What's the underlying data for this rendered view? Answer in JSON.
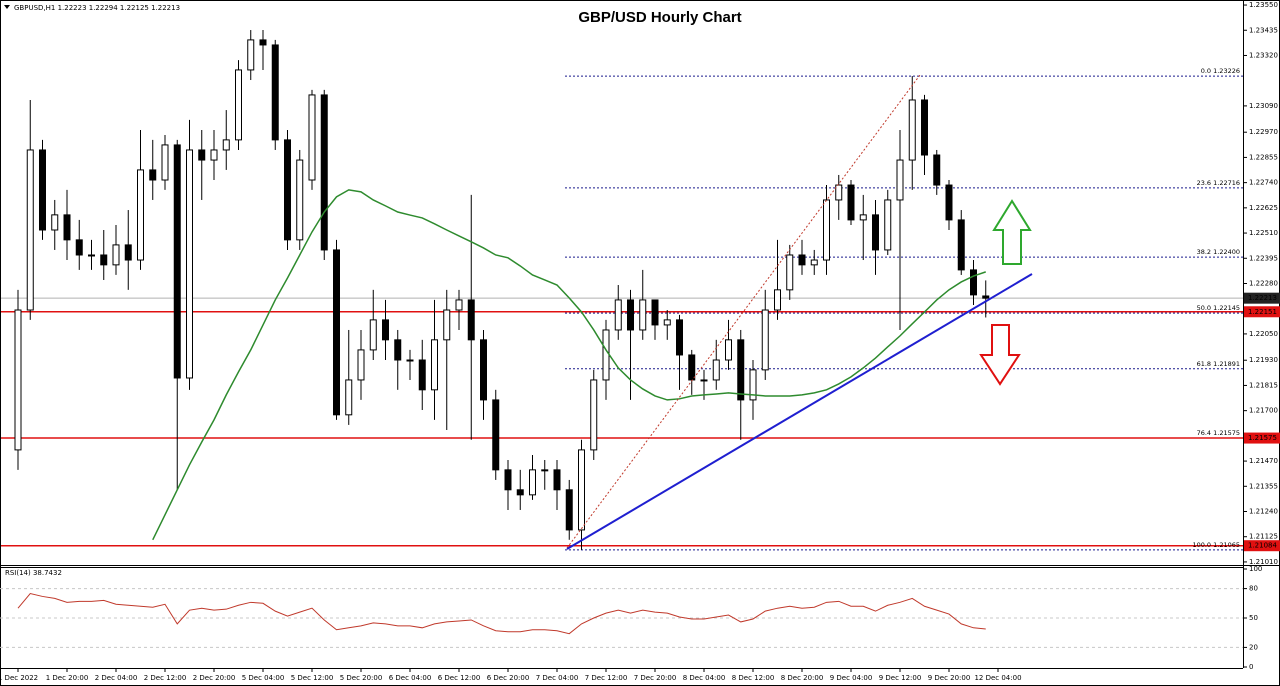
{
  "chart_data": {
    "type": "candlestick",
    "title": "GBP/USD Hourly Chart",
    "header": "GBPUSD,H1 1.22223 1.22294 1.22125 1.22213",
    "categories": [
      "1 Dec 2022",
      null,
      null,
      null,
      "1 Dec 20:00",
      null,
      null,
      null,
      "2 Dec 04:00",
      null,
      null,
      null,
      "2 Dec 12:00",
      null,
      null,
      null,
      "2 Dec 20:00",
      null,
      null,
      null,
      "5 Dec 04:00",
      null,
      null,
      null,
      "5 Dec 12:00",
      null,
      null,
      null,
      "5 Dec 20:00",
      null,
      null,
      null,
      "6 Dec 04:00",
      null,
      null,
      null,
      "6 Dec 12:00",
      null,
      null,
      null,
      "6 Dec 20:00",
      null,
      null,
      null,
      "7 Dec 04:00",
      null,
      null,
      null,
      "7 Dec 12:00",
      null,
      null,
      null,
      "7 Dec 20:00",
      null,
      null,
      null,
      "8 Dec 04:00",
      null,
      null,
      null,
      "8 Dec 12:00",
      null,
      null,
      null,
      "8 Dec 20:00",
      null,
      null,
      null,
      "9 Dec 04:00",
      null,
      null,
      null,
      "9 Dec 12:00",
      null,
      null,
      null,
      "9 Dec 20:00",
      null,
      null,
      null,
      "12 Dec 04:00"
    ],
    "open": [
      1.21521,
      1.22159,
      1.22889,
      1.22524,
      1.22593,
      1.22479,
      1.2241,
      1.2241,
      1.22365,
      1.22456,
      1.22387,
      1.22798,
      1.22752,
      1.22912,
      1.21849,
      1.22889,
      1.22843,
      1.22889,
      1.22935,
      1.23254,
      1.23391,
      1.23368,
      1.22935,
      1.22479,
      1.22752,
      1.2314,
      1.22433,
      1.21681,
      1.2184,
      1.21977,
      1.22114,
      1.22023,
      1.21931,
      1.21931,
      1.21795,
      1.22023,
      1.22159,
      1.22205,
      1.22023,
      1.21749,
      1.2143,
      1.21339,
      1.21316,
      1.2143,
      1.2143,
      1.21339,
      1.21156,
      1.21521,
      1.2184,
      1.22068,
      1.22205,
      1.22068,
      1.22205,
      1.22091,
      1.22114,
      1.21954,
      1.2184,
      1.2184,
      1.21931,
      1.22023,
      1.21749,
      1.21886,
      1.22159,
      1.22251,
      1.2241,
      1.22365,
      1.22387,
      1.22661,
      1.22729,
      1.2257,
      1.22593,
      1.22433,
      1.22661,
      1.22843,
      1.23117,
      1.22866,
      1.22729,
      1.2257,
      1.22342,
      1.22223,
      null
    ],
    "high": [
      1.22251,
      1.23117,
      1.22935,
      1.22661,
      1.22707,
      1.2257,
      1.22479,
      1.22524,
      1.22547,
      1.22615,
      1.2298,
      1.22935,
      1.22957,
      1.22935,
      1.23026,
      1.2298,
      1.2298,
      1.23071,
      1.23299,
      1.23436,
      1.23436,
      1.23391,
      1.2298,
      1.22889,
      1.23163,
      1.23163,
      1.22479,
      1.22068,
      1.22068,
      1.22251,
      1.22205,
      1.22068,
      1.21977,
      1.22023,
      1.22205,
      1.22251,
      1.22251,
      1.22684,
      1.22068,
      1.21795,
      1.21475,
      1.2143,
      1.21498,
      1.21475,
      1.21475,
      1.21384,
      1.21567,
      1.21886,
      1.22114,
      1.22273,
      1.22251,
      1.22342,
      1.22205,
      1.22159,
      1.22137,
      1.21977,
      1.21886,
      1.22023,
      1.22114,
      1.22068,
      1.21931,
      1.22251,
      1.22479,
      1.22456,
      1.22479,
      1.22433,
      1.22729,
      1.22775,
      1.22752,
      1.22684,
      1.22661,
      1.22707,
      1.2298,
      1.23226,
      1.2314,
      1.22889,
      1.22752,
      1.22615,
      1.22387,
      1.22294,
      null
    ],
    "low": [
      1.2143,
      1.22114,
      1.22479,
      1.22433,
      1.22387,
      1.22342,
      1.22342,
      1.22296,
      1.22319,
      1.22251,
      1.22342,
      1.22661,
      1.22707,
      1.21339,
      1.21795,
      1.22661,
      1.22752,
      1.22798,
      1.22889,
      1.23208,
      1.23254,
      1.22889,
      1.22433,
      1.22433,
      1.22707,
      1.22387,
      1.21658,
      1.21635,
      1.21749,
      1.21931,
      1.21931,
      1.21795,
      1.2184,
      1.21703,
      1.21658,
      1.21612,
      1.22068,
      1.21567,
      1.21658,
      1.21384,
      1.21247,
      1.21247,
      1.21293,
      1.21339,
      1.21247,
      1.21111,
      1.21065,
      1.21475,
      1.21749,
      1.22023,
      1.21749,
      1.22023,
      1.22023,
      1.22023,
      1.21795,
      1.21772,
      1.21749,
      1.21795,
      1.21886,
      1.21567,
      1.21658,
      1.2184,
      1.22114,
      1.22205,
      1.22319,
      1.22319,
      1.22319,
      1.2257,
      1.22547,
      1.22387,
      1.22319,
      1.2241,
      1.22068,
      1.22707,
      1.22775,
      1.22684,
      1.22524,
      1.22319,
      1.22182,
      1.22125,
      null
    ],
    "close": [
      1.22159,
      1.22889,
      1.22524,
      1.22593,
      1.22479,
      1.2241,
      1.2241,
      1.22365,
      1.22456,
      1.22387,
      1.22798,
      1.22752,
      1.22912,
      1.21849,
      1.22889,
      1.22843,
      1.22889,
      1.22935,
      1.23254,
      1.23391,
      1.23368,
      1.22935,
      1.22479,
      1.22843,
      1.2314,
      1.22433,
      1.21681,
      1.2184,
      1.21977,
      1.22114,
      1.22023,
      1.21931,
      1.21931,
      1.21795,
      1.22023,
      1.22159,
      1.22205,
      1.22023,
      1.21749,
      1.2143,
      1.21339,
      1.21316,
      1.2143,
      1.2143,
      1.21339,
      1.21156,
      1.21521,
      1.2184,
      1.22068,
      1.22205,
      1.22068,
      1.22205,
      1.22091,
      1.22114,
      1.21954,
      1.2184,
      1.2184,
      1.21931,
      1.22023,
      1.21749,
      1.21886,
      1.22159,
      1.22251,
      1.2241,
      1.22365,
      1.22387,
      1.22661,
      1.22729,
      1.2257,
      1.22593,
      1.22433,
      1.22661,
      1.22843,
      1.23117,
      1.22866,
      1.22729,
      1.2257,
      1.22342,
      1.22228,
      1.22213,
      null
    ],
    "candle_colors": {
      "up": "#ffffff",
      "down": "#000000",
      "outline": "#000000"
    },
    "moving_average": {
      "color": "#2e8b2e",
      "values": [
        null,
        null,
        null,
        null,
        null,
        null,
        null,
        null,
        null,
        null,
        null,
        1.21111,
        1.21225,
        1.21339,
        1.21453,
        1.21557,
        1.21658,
        1.21772,
        1.21877,
        1.21977,
        1.22091,
        1.22205,
        1.22305,
        1.2241,
        1.22515,
        1.22606,
        1.22675,
        1.22707,
        1.22698,
        1.22661,
        1.22634,
        1.22606,
        1.22592,
        1.22579,
        1.22552,
        1.22524,
        1.22497,
        1.2247,
        1.22442,
        1.2241,
        1.22397,
        1.2236,
        1.22319,
        1.22296,
        1.22273,
        1.22214,
        1.2215,
        1.22068,
        1.21977,
        1.21895,
        1.2184,
        1.21799,
        1.21767,
        1.21749,
        1.21754,
        1.21767,
        1.21772,
        1.21776,
        1.21781,
        1.21776,
        1.21772,
        1.21767,
        1.21767,
        1.21767,
        1.21772,
        1.21781,
        1.21795,
        1.21822,
        1.21854,
        1.21895,
        1.2194,
        1.21991,
        1.22041,
        1.22096,
        1.2215,
        1.22205,
        1.22251,
        1.22287,
        1.22314,
        1.22333,
        null
      ]
    },
    "ylim": [
      1.20996,
      1.23573
    ],
    "yticks": [
      {
        "value": 1.2355,
        "label": "1.23550"
      },
      1.23435,
      {
        "value": 1.2332,
        "label": "1.23320"
      },
      {
        "value": 1.2309,
        "label": "1.23090"
      },
      {
        "value": 1.2297,
        "label": "1.22970"
      },
      1.22855,
      {
        "value": 1.2274,
        "label": "1.22740"
      },
      1.22625,
      {
        "value": 1.2251,
        "label": "1.22510"
      },
      1.22395,
      {
        "value": 1.2228,
        "label": "1.22280"
      },
      {
        "value": 1.2205,
        "label": "1.22050"
      },
      {
        "value": 1.2193,
        "label": "1.21930"
      },
      1.21815,
      {
        "value": 1.217,
        "label": "1.21700"
      },
      {
        "value": 1.2147,
        "label": "1.21470"
      },
      1.21355,
      {
        "value": 1.2124,
        "label": "1.21240"
      },
      1.21125,
      {
        "value": 1.2101,
        "label": "1.21010"
      }
    ],
    "fibonacci_color": "#1a1a8c",
    "fibonacci_levels": [
      {
        "value": 1.23226,
        "label": "0.0 1.23226"
      },
      {
        "value": 1.22716,
        "label": "23.6 1.22716"
      },
      {
        "value": 1.224,
        "label": "38.2 1.22400"
      },
      {
        "value": 1.22145,
        "label": "50.0 1.22145"
      },
      {
        "value": 1.21891,
        "label": "61.8 1.21891"
      },
      {
        "value": 1.21575,
        "label": "76.4 1.21575"
      },
      {
        "value": 1.21065,
        "label": "100.0 1.21065"
      }
    ],
    "price_line_color": "#e01010",
    "price_lines": [
      {
        "value": 1.22151,
        "label": "1.22151"
      },
      {
        "value": 1.21575,
        "label": "1.21575"
      },
      {
        "value": 1.21084,
        "label": "1.21084"
      }
    ],
    "current_price": {
      "value": 1.22213,
      "label": "1.22213"
    },
    "rsi": {
      "label": "RSI(14) 38.7432",
      "color": "#c0392b",
      "ylim": [
        0,
        100
      ],
      "yticks": [
        100,
        80,
        50,
        20,
        0
      ],
      "levels": [
        80,
        50,
        20
      ],
      "values": [
        60,
        75,
        72,
        70,
        66,
        67,
        67,
        68,
        64,
        63,
        62,
        61,
        64,
        44,
        58,
        60,
        58,
        59,
        63,
        66,
        65,
        57,
        52,
        56,
        60,
        48,
        38,
        40,
        42,
        45,
        44,
        42,
        42,
        40,
        44,
        46,
        47,
        48,
        42,
        37,
        36,
        36,
        38,
        38,
        37,
        34,
        44,
        50,
        55,
        58,
        55,
        58,
        56,
        55,
        51,
        49,
        49,
        51,
        53,
        46,
        49,
        57,
        60,
        62,
        60,
        61,
        66,
        67,
        62,
        62,
        57,
        63,
        66,
        70,
        62,
        58,
        54,
        44,
        40,
        38.7432,
        null
      ]
    }
  }
}
